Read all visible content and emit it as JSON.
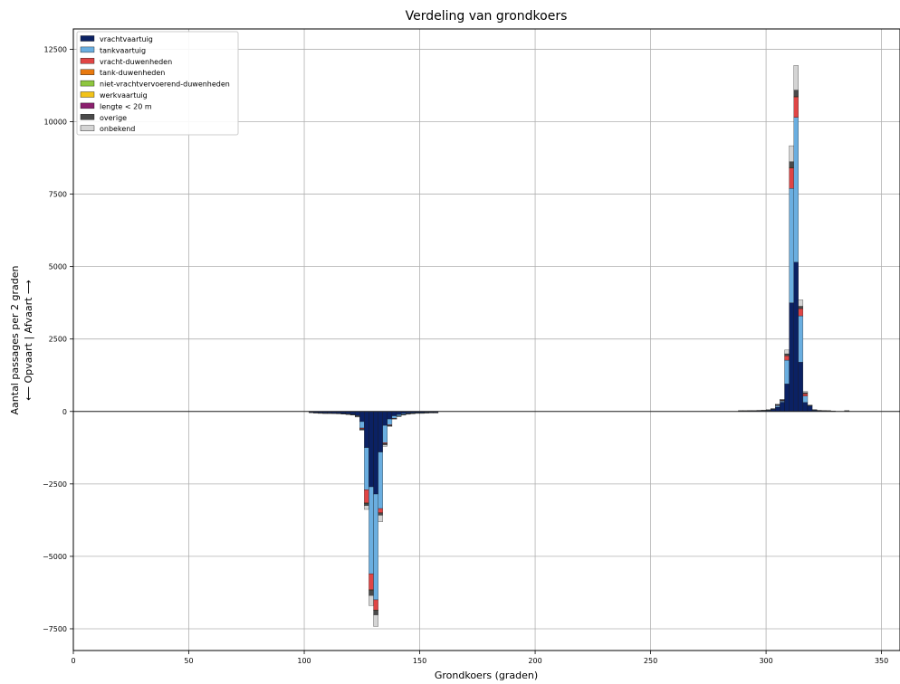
{
  "chart_data": {
    "type": "bar",
    "stacked": true,
    "title": "Verdeling van grondkoers",
    "xlabel": "Grondkoers (graden)",
    "ylabel_line1": "Aantal passages per 2 graden",
    "ylabel_line2": "⟵  Opvaart | Afvaart  ⟶",
    "xlim": [
      0,
      358
    ],
    "ylim": [
      -8250,
      13200
    ],
    "bin_width": 2,
    "grid": true,
    "legend_position": "upper-left",
    "xticks": [
      0,
      50,
      100,
      150,
      200,
      250,
      300,
      350
    ],
    "yticks": [
      -7500,
      -5000,
      -2500,
      0,
      2500,
      5000,
      7500,
      10000,
      12500
    ],
    "ytick_labels": [
      "−7500",
      "−5000",
      "−2500",
      "0",
      "2500",
      "5000",
      "7500",
      "10000",
      "12500"
    ],
    "series": [
      {
        "name": "vrachtvaartuig",
        "color": "#0b2163"
      },
      {
        "name": "tankvaartuig",
        "color": "#6aaee0"
      },
      {
        "name": "vracht-duwenheden",
        "color": "#e04545"
      },
      {
        "name": "tank-duwenheden",
        "color": "#e8790f"
      },
      {
        "name": "niet-vrachtvervoerend-duwenheden",
        "color": "#8ec63f"
      },
      {
        "name": "werkvaartuig",
        "color": "#f2c318"
      },
      {
        "name": "lengte < 20 m",
        "color": "#8b1f6e"
      },
      {
        "name": "overige",
        "color": "#4a4a4a"
      },
      {
        "name": "onbekend",
        "color": "#d4d4d4"
      }
    ],
    "bins": [
      {
        "x": 102,
        "v": [
          -30,
          0,
          0,
          0,
          0,
          0,
          0,
          -10,
          0
        ]
      },
      {
        "x": 104,
        "v": [
          -40,
          0,
          0,
          0,
          0,
          0,
          0,
          -10,
          0
        ]
      },
      {
        "x": 106,
        "v": [
          -50,
          0,
          0,
          0,
          0,
          0,
          0,
          -10,
          0
        ]
      },
      {
        "x": 108,
        "v": [
          -55,
          0,
          0,
          0,
          0,
          0,
          0,
          -10,
          0
        ]
      },
      {
        "x": 110,
        "v": [
          -55,
          0,
          0,
          0,
          0,
          0,
          0,
          -10,
          0
        ]
      },
      {
        "x": 112,
        "v": [
          -60,
          0,
          0,
          0,
          0,
          0,
          0,
          -10,
          0
        ]
      },
      {
        "x": 114,
        "v": [
          -60,
          -5,
          0,
          0,
          0,
          0,
          0,
          -10,
          0
        ]
      },
      {
        "x": 116,
        "v": [
          -70,
          -5,
          0,
          0,
          0,
          0,
          0,
          -10,
          0
        ]
      },
      {
        "x": 118,
        "v": [
          -80,
          -10,
          0,
          0,
          0,
          0,
          0,
          -10,
          0
        ]
      },
      {
        "x": 120,
        "v": [
          -100,
          -10,
          0,
          0,
          0,
          0,
          0,
          -10,
          0
        ]
      },
      {
        "x": 122,
        "v": [
          -140,
          -20,
          -5,
          0,
          0,
          0,
          0,
          -10,
          -5
        ]
      },
      {
        "x": 124,
        "v": [
          -350,
          -220,
          -30,
          0,
          0,
          0,
          0,
          -30,
          -20
        ]
      },
      {
        "x": 126,
        "v": [
          -1250,
          -1450,
          -450,
          -20,
          0,
          0,
          0,
          -80,
          -130
        ]
      },
      {
        "x": 128,
        "v": [
          -2600,
          -3000,
          -550,
          -20,
          0,
          0,
          0,
          -180,
          -350
        ]
      },
      {
        "x": 130,
        "v": [
          -2850,
          -3650,
          -350,
          -10,
          0,
          0,
          0,
          -160,
          -400
        ]
      },
      {
        "x": 132,
        "v": [
          -1400,
          -1950,
          -150,
          0,
          0,
          0,
          0,
          -80,
          -230
        ]
      },
      {
        "x": 134,
        "v": [
          -480,
          -600,
          -30,
          0,
          0,
          0,
          0,
          -40,
          -50
        ]
      },
      {
        "x": 136,
        "v": [
          -260,
          -200,
          -20,
          0,
          0,
          0,
          0,
          -20,
          -20
        ]
      },
      {
        "x": 138,
        "v": [
          -150,
          -80,
          -10,
          0,
          0,
          0,
          0,
          -10,
          -10
        ]
      },
      {
        "x": 140,
        "v": [
          -110,
          -50,
          0,
          0,
          0,
          0,
          0,
          -10,
          0
        ]
      },
      {
        "x": 142,
        "v": [
          -80,
          -30,
          0,
          0,
          0,
          0,
          0,
          -10,
          0
        ]
      },
      {
        "x": 144,
        "v": [
          -60,
          -20,
          0,
          0,
          0,
          0,
          0,
          -10,
          0
        ]
      },
      {
        "x": 146,
        "v": [
          -50,
          -15,
          0,
          0,
          0,
          0,
          0,
          -10,
          0
        ]
      },
      {
        "x": 148,
        "v": [
          -40,
          -10,
          0,
          0,
          0,
          0,
          0,
          -10,
          0
        ]
      },
      {
        "x": 150,
        "v": [
          -40,
          -10,
          0,
          0,
          0,
          0,
          0,
          -10,
          0
        ]
      },
      {
        "x": 152,
        "v": [
          -30,
          -10,
          0,
          0,
          0,
          0,
          0,
          -10,
          0
        ]
      },
      {
        "x": 154,
        "v": [
          -30,
          -5,
          0,
          0,
          0,
          0,
          0,
          -10,
          0
        ]
      },
      {
        "x": 156,
        "v": [
          -30,
          -5,
          0,
          0,
          0,
          0,
          0,
          -10,
          0
        ]
      },
      {
        "x": 288,
        "v": [
          20,
          0,
          0,
          0,
          0,
          0,
          0,
          10,
          0
        ]
      },
      {
        "x": 290,
        "v": [
          20,
          0,
          0,
          0,
          0,
          0,
          0,
          10,
          0
        ]
      },
      {
        "x": 292,
        "v": [
          25,
          0,
          0,
          0,
          0,
          0,
          0,
          10,
          0
        ]
      },
      {
        "x": 294,
        "v": [
          25,
          0,
          0,
          0,
          0,
          0,
          0,
          10,
          0
        ]
      },
      {
        "x": 296,
        "v": [
          30,
          0,
          0,
          0,
          0,
          0,
          0,
          10,
          0
        ]
      },
      {
        "x": 298,
        "v": [
          30,
          5,
          0,
          0,
          0,
          0,
          0,
          10,
          0
        ]
      },
      {
        "x": 300,
        "v": [
          40,
          10,
          0,
          0,
          0,
          0,
          0,
          10,
          0
        ]
      },
      {
        "x": 302,
        "v": [
          70,
          20,
          0,
          0,
          0,
          0,
          0,
          10,
          0
        ]
      },
      {
        "x": 304,
        "v": [
          150,
          60,
          10,
          0,
          0,
          0,
          0,
          20,
          10
        ]
      },
      {
        "x": 306,
        "v": [
          320,
          40,
          20,
          0,
          0,
          0,
          0,
          20,
          20
        ]
      },
      {
        "x": 308,
        "v": [
          950,
          820,
          150,
          0,
          0,
          0,
          0,
          70,
          130
        ]
      },
      {
        "x": 310,
        "v": [
          3750,
          3950,
          700,
          20,
          0,
          0,
          0,
          200,
          550
        ]
      },
      {
        "x": 312,
        "v": [
          5150,
          5000,
          700,
          20,
          0,
          0,
          0,
          220,
          850
        ]
      },
      {
        "x": 314,
        "v": [
          1700,
          1600,
          250,
          0,
          0,
          0,
          0,
          80,
          220
        ]
      },
      {
        "x": 316,
        "v": [
          310,
          220,
          80,
          0,
          0,
          0,
          0,
          40,
          40
        ]
      },
      {
        "x": 318,
        "v": [
          190,
          20,
          0,
          0,
          0,
          0,
          0,
          10,
          0
        ]
      },
      {
        "x": 320,
        "v": [
          50,
          5,
          0,
          0,
          0,
          0,
          0,
          10,
          0
        ]
      },
      {
        "x": 322,
        "v": [
          30,
          0,
          0,
          0,
          0,
          0,
          0,
          10,
          0
        ]
      },
      {
        "x": 324,
        "v": [
          25,
          0,
          0,
          0,
          0,
          0,
          0,
          10,
          0
        ]
      },
      {
        "x": 326,
        "v": [
          20,
          0,
          0,
          0,
          0,
          0,
          0,
          10,
          0
        ]
      },
      {
        "x": 328,
        "v": [
          15,
          0,
          0,
          0,
          0,
          0,
          0,
          5,
          0
        ]
      },
      {
        "x": 334,
        "v": [
          20,
          0,
          0,
          0,
          0,
          0,
          0,
          10,
          0
        ]
      }
    ]
  }
}
